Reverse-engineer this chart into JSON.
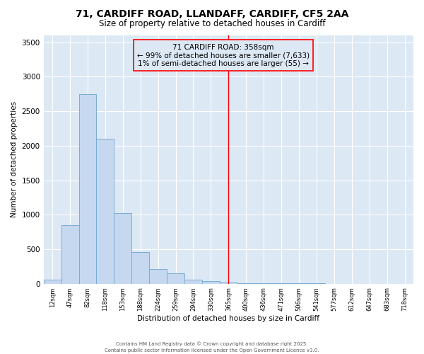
{
  "title_line1": "71, CARDIFF ROAD, LLANDAFF, CARDIFF, CF5 2AA",
  "title_line2": "Size of property relative to detached houses in Cardiff",
  "xlabel": "Distribution of detached houses by size in Cardiff",
  "ylabel": "Number of detached properties",
  "bar_values": [
    55,
    850,
    2750,
    2100,
    1020,
    460,
    215,
    145,
    55,
    35,
    20,
    10,
    5,
    3,
    2,
    1,
    0,
    0,
    0,
    0,
    0
  ],
  "x_tick_labels": [
    "12sqm",
    "47sqm",
    "82sqm",
    "118sqm",
    "153sqm",
    "188sqm",
    "224sqm",
    "259sqm",
    "294sqm",
    "330sqm",
    "365sqm",
    "400sqm",
    "436sqm",
    "471sqm",
    "506sqm",
    "541sqm",
    "577sqm",
    "612sqm",
    "647sqm",
    "683sqm",
    "718sqm"
  ],
  "bar_color": "#c5d8f0",
  "bar_edge_color": "#7aadd4",
  "vline_x_label": "365sqm",
  "vline_color": "red",
  "annotation_title": "71 CARDIFF ROAD: 358sqm",
  "annotation_line2": "← 99% of detached houses are smaller (7,633)",
  "annotation_line3": "1% of semi-detached houses are larger (55) →",
  "annotation_color": "red",
  "annotation_fontsize": 7.5,
  "ylim": [
    0,
    3600
  ],
  "plot_bg_color": "#dde8f5",
  "fig_bg_color": "#ffffff",
  "footer_line1": "Contains HM Land Registry data © Crown copyright and database right 2025.",
  "footer_line2": "Contains public sector information licensed under the Open Government Licence v3.0."
}
